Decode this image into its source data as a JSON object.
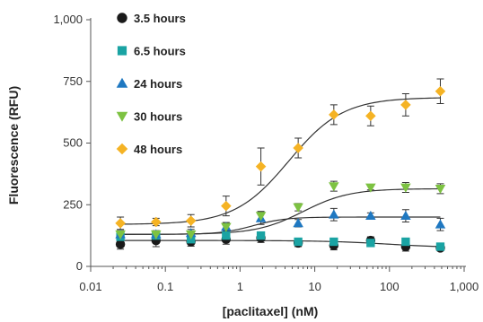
{
  "chart_data": {
    "type": "scatter",
    "xlabel": "[paclitaxel] (nM)",
    "ylabel": "Fluorescence (RFU)",
    "x_scale": "log",
    "xlim": [
      0.01,
      1000
    ],
    "ylim": [
      0,
      1000
    ],
    "x_ticks": [
      0.01,
      0.1,
      1,
      10,
      100,
      1000
    ],
    "x_tick_labels": [
      "0.01",
      "0.1",
      "1",
      "10",
      "100",
      "1,000"
    ],
    "y_ticks": [
      0,
      250,
      500,
      750,
      1000
    ],
    "y_tick_labels": [
      "0",
      "250",
      "500",
      "750",
      "1,000"
    ],
    "legend_position": "top-left",
    "x": [
      0.025,
      0.075,
      0.22,
      0.65,
      1.9,
      6,
      18,
      56,
      165,
      480
    ],
    "series": [
      {
        "name": "3.5 hours",
        "marker": "circle",
        "color": "#1a1a1a",
        "values": [
          90,
          105,
          100,
          110,
          115,
          95,
          85,
          105,
          80,
          75
        ],
        "errors": [
          20,
          25,
          18,
          20,
          18,
          15,
          18,
          15,
          18,
          10
        ],
        "fit": {
          "bottom": 105,
          "top": 75,
          "ec50": 100,
          "hill": 1
        }
      },
      {
        "name": "6.5 hours",
        "marker": "square",
        "color": "#1aa3a3",
        "values": [
          120,
          125,
          110,
          125,
          125,
          100,
          100,
          95,
          100,
          80
        ],
        "errors": [
          15,
          15,
          15,
          12,
          12,
          12,
          12,
          10,
          12,
          10
        ],
        "fit": null
      },
      {
        "name": "24 hours",
        "marker": "triangle-up",
        "color": "#1f78c1",
        "values": [
          130,
          130,
          135,
          160,
          195,
          175,
          210,
          205,
          205,
          170
        ],
        "errors": [
          15,
          15,
          15,
          18,
          25,
          15,
          25,
          12,
          25,
          25
        ],
        "fit": {
          "bottom": 130,
          "top": 200,
          "ec50": 1.5,
          "hill": 2
        }
      },
      {
        "name": "30 hours",
        "marker": "triangle-down",
        "color": "#7dc242",
        "values": [
          130,
          130,
          130,
          160,
          205,
          240,
          325,
          320,
          320,
          315
        ],
        "errors": [
          15,
          12,
          12,
          15,
          18,
          15,
          20,
          10,
          20,
          20
        ],
        "fit": {
          "bottom": 130,
          "top": 315,
          "ec50": 7,
          "hill": 1.4
        }
      },
      {
        "name": "48 hours",
        "marker": "diamond",
        "color": "#f5b324",
        "values": [
          175,
          180,
          185,
          245,
          405,
          480,
          615,
          610,
          655,
          710
        ],
        "errors": [
          25,
          15,
          25,
          40,
          75,
          40,
          40,
          40,
          45,
          50
        ],
        "fit": {
          "bottom": 170,
          "top": 685,
          "ec50": 4.5,
          "hill": 1.2
        }
      }
    ]
  }
}
